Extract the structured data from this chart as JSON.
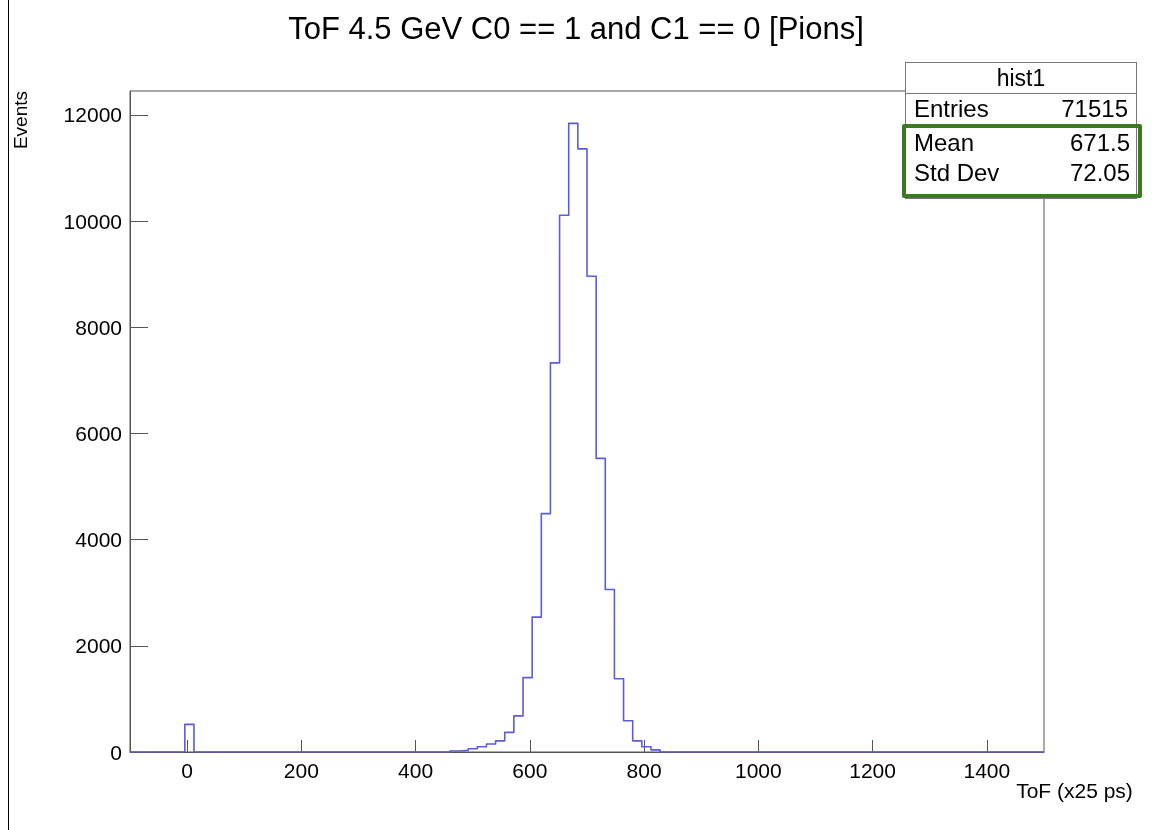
{
  "chart_data": {
    "type": "histogram",
    "title": "ToF 4.5 GeV C0 == 1 and C1 == 0 [Pions]",
    "xlabel": "ToF (x25 ps)",
    "ylabel": "Events",
    "color": "#5c5cd6",
    "bins": [
      -100,
      -84,
      -68,
      -52,
      -36,
      -20,
      -4,
      12,
      28,
      44,
      60,
      76,
      92,
      108,
      124,
      140,
      156,
      172,
      188,
      204,
      220,
      236,
      252,
      268,
      284,
      300,
      316,
      332,
      348,
      364,
      380,
      396,
      412,
      428,
      444,
      460,
      476,
      492,
      508,
      524,
      540,
      556,
      572,
      588,
      604,
      620,
      636,
      652,
      668,
      684,
      700,
      716,
      732,
      748,
      764,
      780,
      796,
      812,
      828,
      844,
      860,
      876,
      892,
      908,
      924,
      940,
      956,
      972,
      988,
      1004,
      1020,
      1036,
      1052,
      1068,
      1084,
      1100,
      1116,
      1132,
      1148,
      1164,
      1180,
      1196,
      1212,
      1228,
      1244,
      1260,
      1276,
      1292,
      1308,
      1324,
      1340,
      1356,
      1372,
      1388,
      1404,
      1420,
      1436,
      1452,
      1468,
      1484,
      1500
    ],
    "values": [
      0,
      0,
      0,
      0,
      0,
      0,
      520,
      0,
      0,
      0,
      0,
      0,
      0,
      0,
      0,
      0,
      0,
      0,
      0,
      0,
      0,
      0,
      0,
      0,
      0,
      0,
      0,
      0,
      0,
      0,
      0,
      0,
      0,
      0,
      0,
      20,
      30,
      60,
      100,
      150,
      210,
      370,
      680,
      1400,
      2540,
      4490,
      7330,
      10110,
      11840,
      11360,
      8960,
      5530,
      3060,
      1380,
      590,
      210,
      100,
      40,
      0,
      0,
      0,
      0,
      0,
      0,
      0,
      0,
      0,
      0,
      0,
      0,
      0,
      0,
      0,
      0,
      0,
      0,
      0,
      0,
      0,
      0,
      0,
      0,
      0,
      0,
      0,
      0,
      0,
      0,
      0,
      0,
      0,
      0,
      0,
      0,
      0,
      0,
      0,
      0,
      0,
      0
    ],
    "xlim": [
      -100,
      1500
    ],
    "xticks": [
      0,
      200,
      400,
      600,
      800,
      1000,
      1200,
      1400
    ],
    "ylim": [
      0,
      12450
    ],
    "yticks": [
      0,
      2000,
      4000,
      6000,
      8000,
      10000,
      12000
    ],
    "grid": false,
    "annotations": [
      "hist1",
      "Entries 71515",
      "Mean 671.5",
      "Std Dev 72.05"
    ]
  }
}
